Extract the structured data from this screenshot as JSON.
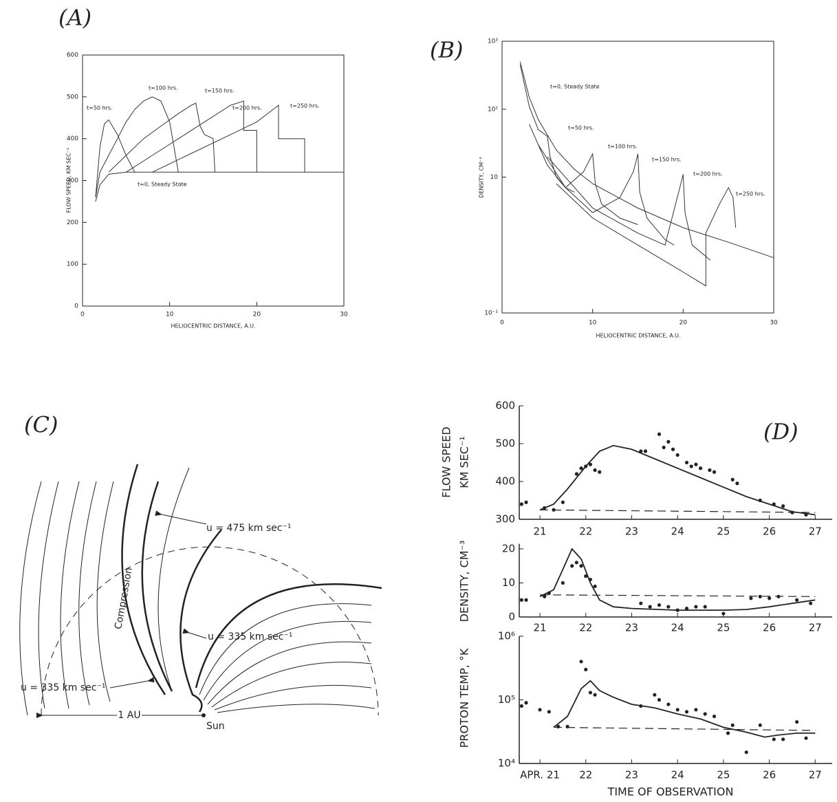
{
  "chart_data": [
    {
      "type": "line",
      "label": "(A)",
      "xlabel": "HELIOCENTRIC DISTANCE, A.U.",
      "ylabel": "FLOW SPEED, KM SEC⁻¹",
      "xlim": [
        0,
        30
      ],
      "xticks": [
        0,
        10,
        20,
        30
      ],
      "ylim": [
        0,
        600
      ],
      "yticks": [
        0,
        100,
        200,
        300,
        400,
        500,
        600
      ],
      "log": false,
      "frame": true,
      "series": [
        {
          "name": "t=0, Steady State",
          "color": "#333",
          "style": "solid",
          "x": [
            1.5,
            2,
            3,
            5,
            10,
            20,
            30
          ],
          "values": [
            250,
            290,
            315,
            320,
            320,
            320,
            320
          ]
        },
        {
          "name": "t=50 hrs.",
          "color": "#333",
          "style": "solid",
          "x": [
            1.5,
            2,
            2.5,
            3,
            4,
            5,
            6
          ],
          "values": [
            260,
            380,
            435,
            445,
            410,
            360,
            320
          ]
        },
        {
          "name": "t=100 hrs.",
          "color": "#333",
          "style": "solid",
          "x": [
            1.5,
            2,
            3,
            4,
            5,
            6,
            7,
            8,
            9,
            10,
            11
          ],
          "values": [
            260,
            320,
            360,
            400,
            440,
            470,
            490,
            500,
            490,
            440,
            320
          ]
        },
        {
          "name": "t=150 hrs.",
          "color": "#333",
          "style": "solid",
          "x": [
            3,
            5,
            7,
            9,
            11,
            12.5,
            13,
            13.5,
            14,
            15,
            15.2
          ],
          "values": [
            320,
            360,
            400,
            430,
            460,
            480,
            485,
            430,
            410,
            400,
            320
          ]
        },
        {
          "name": "t=200 hrs.",
          "color": "#333",
          "style": "solid",
          "x": [
            5,
            8,
            11,
            14,
            17,
            18.5,
            18.5,
            20,
            20
          ],
          "values": [
            320,
            360,
            400,
            440,
            480,
            490,
            420,
            420,
            320
          ]
        },
        {
          "name": "t=250 hrs.",
          "color": "#333",
          "style": "solid",
          "x": [
            8,
            12,
            16,
            20,
            22.5,
            22.5,
            25.5,
            25.5
          ],
          "values": [
            320,
            360,
            400,
            440,
            480,
            400,
            400,
            320
          ]
        }
      ]
    },
    {
      "type": "line",
      "label": "(B)",
      "xlabel": "HELIOCENTRIC DISTANCE, A.U.",
      "ylabel": "DENSITY, CM⁻³",
      "xlim": [
        0,
        30
      ],
      "xticks": [
        0,
        10,
        20,
        30
      ],
      "ylim": [
        0.1,
        1000
      ],
      "yticks": [
        {
          "value": 0.1,
          "label": "10⁻¹"
        },
        10,
        {
          "value": 100,
          "label": "10²"
        },
        {
          "value": 1000,
          "label": "10³"
        }
      ],
      "log": true,
      "frame": true,
      "series": [
        {
          "name": "t=0, Steady State",
          "color": "#333",
          "style": "solid",
          "x": [
            2,
            3,
            4,
            6,
            8,
            10,
            15,
            20,
            25,
            30
          ],
          "values": [
            500,
            150,
            70,
            25,
            13,
            8,
            3.5,
            1.8,
            1.1,
            0.65
          ]
        },
        {
          "name": "t=50 hrs.",
          "color": "#333",
          "style": "solid",
          "x": [
            2,
            3,
            4,
            5,
            5.3,
            6,
            7,
            8
          ],
          "values": [
            450,
            110,
            50,
            40,
            20,
            10,
            7,
            6
          ]
        },
        {
          "name": "t=100 hrs.",
          "color": "#333",
          "style": "solid",
          "x": [
            3,
            5,
            7,
            9,
            10,
            10.3,
            11,
            13,
            15
          ],
          "values": [
            60,
            15,
            7,
            12,
            22,
            8,
            4,
            2.5,
            2
          ]
        },
        {
          "name": "t=150 hrs.",
          "color": "#333",
          "style": "solid",
          "x": [
            4,
            7,
            10,
            13,
            14.5,
            15,
            15.2,
            16,
            18,
            19
          ],
          "values": [
            30,
            7,
            3,
            5,
            12,
            22,
            6,
            2.5,
            1.2,
            1
          ]
        },
        {
          "name": "t=200 hrs.",
          "color": "#333",
          "style": "solid",
          "x": [
            5,
            10,
            15,
            18,
            19.5,
            20,
            20.2,
            21,
            23
          ],
          "values": [
            20,
            3.5,
            1.5,
            1,
            6,
            11,
            3,
            1,
            0.6
          ]
        },
        {
          "name": "t=250 hrs.",
          "color": "#333",
          "style": "solid",
          "x": [
            6,
            10,
            15,
            20,
            22.5,
            22.5,
            24,
            25,
            25.5,
            25.8
          ],
          "values": [
            8,
            2.5,
            1,
            0.4,
            0.25,
            1.5,
            4,
            7,
            5,
            1.8
          ]
        }
      ]
    },
    {
      "type": "line",
      "label": "(D)",
      "ylabel": [
        "FLOW SPEED",
        "KM SEC⁻¹"
      ],
      "xlim": [
        20.55,
        27.37
      ],
      "xticks": [
        21,
        22,
        23,
        24,
        25,
        26,
        27
      ],
      "ylim": [
        300,
        600
      ],
      "yticks": [
        300,
        400,
        500,
        600
      ],
      "log": false,
      "frame": false,
      "series": [
        {
          "color": "#222",
          "style": "solid",
          "x": [
            21,
            21.3,
            21.6,
            22,
            22.3,
            22.6,
            23,
            23.5,
            24,
            24.5,
            25,
            25.5,
            26,
            26.5,
            27
          ],
          "values": [
            325,
            340,
            380,
            440,
            480,
            495,
            485,
            460,
            435,
            410,
            385,
            360,
            340,
            320,
            312
          ]
        },
        {
          "color": "#222",
          "style": "points",
          "x": [
            20.6,
            20.7,
            21.1,
            21.3,
            21.5,
            21.8,
            21.9,
            22.0,
            22.1,
            22.2,
            22.3,
            23.2,
            23.3,
            23.6,
            23.7,
            23.8,
            23.9,
            24.0,
            24.2,
            24.3,
            24.4,
            24.5,
            24.7,
            24.8,
            25.2,
            25.3,
            25.8,
            26.1,
            26.3,
            26.5,
            26.8
          ],
          "values": [
            340,
            345,
            330,
            325,
            345,
            420,
            435,
            440,
            445,
            430,
            425,
            480,
            480,
            525,
            490,
            505,
            485,
            470,
            450,
            440,
            445,
            435,
            430,
            425,
            405,
            395,
            350,
            340,
            335,
            318,
            312
          ]
        },
        {
          "color": "#222",
          "style": "dashed",
          "x": [
            21,
            27
          ],
          "values": [
            325,
            318
          ]
        }
      ]
    },
    {
      "type": "line",
      "ylabel": [
        "DENSITY, CM⁻³"
      ],
      "xlim": [
        20.55,
        27.37
      ],
      "xticks": [
        21,
        22,
        23,
        24,
        25,
        26,
        27
      ],
      "ylim": [
        0,
        21.5
      ],
      "yticks": [
        0,
        10,
        20
      ],
      "log": false,
      "frame": false,
      "series": [
        {
          "color": "#222",
          "style": "solid",
          "x": [
            21,
            21.3,
            21.5,
            21.7,
            21.9,
            22.1,
            22.3,
            22.6,
            23,
            24,
            25,
            25.5,
            26,
            26.5,
            27
          ],
          "values": [
            6,
            8,
            14,
            20,
            17,
            10,
            5,
            3,
            2.5,
            2,
            2,
            2.2,
            3,
            4,
            5
          ]
        },
        {
          "color": "#222",
          "style": "points",
          "x": [
            20.6,
            20.7,
            21.1,
            21.2,
            21.5,
            21.7,
            21.8,
            21.9,
            22.0,
            22.1,
            22.2,
            23.2,
            23.4,
            23.6,
            23.8,
            24.0,
            24.2,
            24.4,
            24.6,
            25.0,
            25.6,
            25.8,
            26.0,
            26.2,
            26.6,
            26.9
          ],
          "values": [
            5,
            5,
            6,
            7,
            10,
            15,
            16,
            15,
            12,
            11,
            9,
            4,
            3,
            3.5,
            3,
            2,
            2.5,
            3,
            3,
            1,
            5.5,
            6,
            5.5,
            6,
            5,
            4
          ]
        },
        {
          "color": "#222",
          "style": "dashed",
          "x": [
            21,
            27
          ],
          "values": [
            6.5,
            6
          ]
        }
      ]
    },
    {
      "type": "line",
      "ylabel": [
        "PROTON TEMP, °K"
      ],
      "xlabel": "TIME OF OBSERVATION",
      "xlim": [
        20.55,
        27.37
      ],
      "xticks": [
        {
          "value": 21,
          "label": "APR. 21"
        },
        22,
        23,
        24,
        25,
        26,
        27
      ],
      "ylim": [
        10000,
        1000000
      ],
      "yticks": [
        {
          "value": 10000,
          "label": "10⁴"
        },
        {
          "value": 100000,
          "label": "10⁵"
        },
        {
          "value": 1000000,
          "label": "10⁶"
        }
      ],
      "log": true,
      "frame": false,
      "series": [
        {
          "color": "#222",
          "style": "solid",
          "x": [
            21.3,
            21.6,
            21.9,
            22.1,
            22.3,
            22.6,
            23,
            23.5,
            24,
            24.5,
            25,
            25.5,
            25.9,
            26.2,
            26.6,
            27
          ],
          "values": [
            37000,
            55000,
            150000,
            200000,
            140000,
            110000,
            85000,
            75000,
            60000,
            50000,
            37000,
            31000,
            26000,
            28000,
            30000,
            30000
          ]
        },
        {
          "color": "#222",
          "style": "points",
          "x": [
            20.6,
            20.7,
            21.0,
            21.2,
            21.4,
            21.6,
            21.9,
            22.0,
            22.1,
            22.2,
            23.2,
            23.5,
            23.6,
            23.8,
            24.0,
            24.2,
            24.4,
            24.6,
            24.8,
            25.1,
            25.2,
            25.5,
            25.8,
            26.1,
            26.3,
            26.6,
            26.8
          ],
          "values": [
            80000,
            90000,
            70000,
            65000,
            38000,
            38000,
            400000,
            300000,
            130000,
            120000,
            80000,
            120000,
            100000,
            85000,
            70000,
            65000,
            70000,
            60000,
            55000,
            30000,
            40000,
            15000,
            40000,
            24000,
            24000,
            45000,
            25000
          ]
        },
        {
          "color": "#222",
          "style": "dashed",
          "x": [
            21.3,
            27
          ],
          "values": [
            37000,
            33000
          ]
        }
      ]
    }
  ],
  "diagram": {
    "label": "(C)",
    "annotations": [
      "u = 475 km sec⁻¹",
      "Compression",
      "u = 335 km sec⁻¹",
      "u = 335 km sec⁻¹",
      "1 AU",
      "Sun"
    ]
  }
}
